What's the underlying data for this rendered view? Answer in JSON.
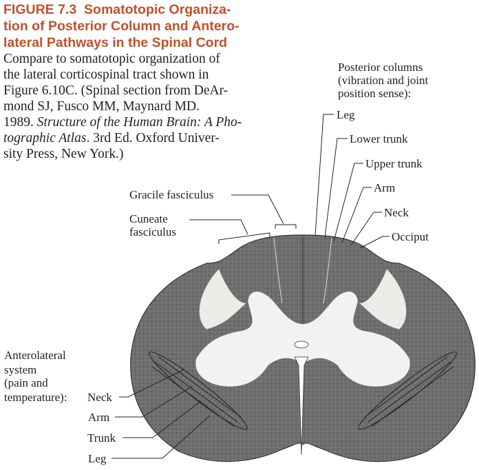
{
  "caption": {
    "figure_number": "FIGURE 7.3",
    "title": "Somatotopic Organization of Posterior Column and Anterolateral Pathways in the Spinal Cord",
    "title_lines": [
      "Somatotopic Organiza-",
      "tion of Posterior Column and Antero-",
      "lateral Pathways in the Spinal Cord"
    ],
    "body_lines": [
      "Compare to somatotopic organization of",
      "the lateral corticospinal tract shown in",
      "Figure 6.10C. (Spinal section from DeAr-",
      "mond SJ, Fusco MM, Maynard MD.",
      "1989. ",
      "Structure of the Human Brain: A Pho-",
      "tographic Atlas",
      ". 3rd Ed. Oxford Univer-",
      "sity Press, New York.)"
    ]
  },
  "labels": {
    "posterior_columns": [
      "Posterior columns",
      "(vibration and joint",
      "position sense):"
    ],
    "posterior_items": [
      "Leg",
      "Lower trunk",
      "Upper trunk",
      "Arm",
      "Neck",
      "Occiput"
    ],
    "gracile": "Gracile fasciculus",
    "cuneate": [
      "Cuneate",
      "fasciculus"
    ],
    "anterolateral": [
      "Anterolateral",
      "system",
      "(pain and",
      "temperature):"
    ],
    "anterolateral_items": [
      "Neck",
      "Arm",
      "Trunk",
      "Leg"
    ]
  },
  "colors": {
    "title": "#c2502a",
    "gray_matter": "#f2f2f0",
    "white_matter": "#6e6e6e",
    "lines": "#222222"
  }
}
